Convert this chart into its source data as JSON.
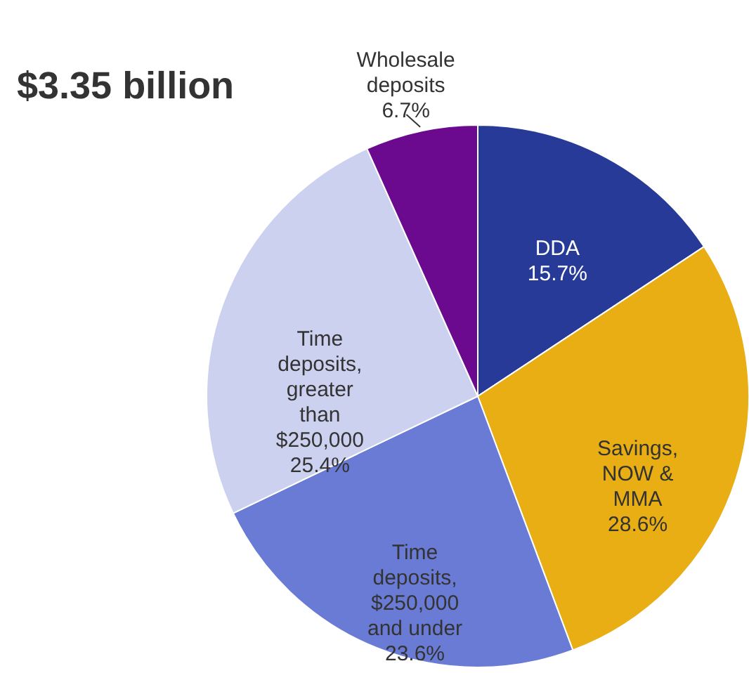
{
  "chart_data": {
    "type": "pie",
    "title": "$3.35 billion",
    "categories": [
      "DDA",
      "Savings,\nNOW &\nMMA",
      "Time\ndeposits,\n$250,000\nand under",
      "Time\ndeposits,\ngreater\nthan\n$250,000",
      "Wholesale\ndeposits"
    ],
    "values": [
      15.7,
      28.6,
      23.6,
      25.4,
      6.7
    ],
    "value_labels": [
      "15.7%",
      "28.6%",
      "23.6%",
      "25.4%",
      "6.7%"
    ],
    "colors": [
      "#283a97",
      "#e8ae14",
      "#6a7bd6",
      "#ccd1f0",
      "#6b0a8f"
    ]
  }
}
